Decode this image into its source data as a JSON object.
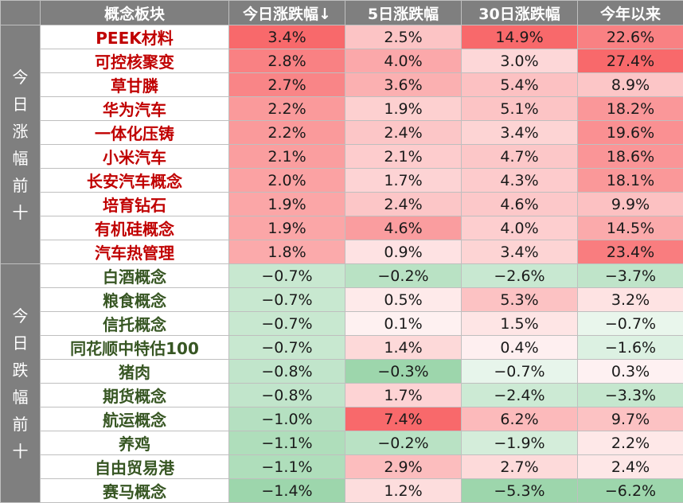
{
  "header": {
    "group_col": "",
    "name_col": "概念板块",
    "today_col": "今日涨跌幅↓",
    "d5_col": "5日涨跌幅",
    "d30_col": "30日涨跌幅",
    "ytd_col": "今年以来"
  },
  "colors": {
    "header_bg": "#7f7f7f",
    "up_text": "#c00000",
    "down_text": "#375623",
    "positive_max": "#f8696b",
    "negative_max": "#63be7b"
  },
  "groups": [
    {
      "label": "今日涨幅前十",
      "direction": "up",
      "rows": [
        {
          "name": "PEEK材料",
          "today": "3.4%",
          "d5": "2.5%",
          "d30": "14.9%",
          "ytd": "22.6%"
        },
        {
          "name": "可控核聚变",
          "today": "2.8%",
          "d5": "4.0%",
          "d30": "3.0%",
          "ytd": "27.4%"
        },
        {
          "name": "草甘膦",
          "today": "2.7%",
          "d5": "3.6%",
          "d30": "5.4%",
          "ytd": "8.9%"
        },
        {
          "name": "华为汽车",
          "today": "2.2%",
          "d5": "1.9%",
          "d30": "5.1%",
          "ytd": "18.2%"
        },
        {
          "name": "一体化压铸",
          "today": "2.2%",
          "d5": "2.4%",
          "d30": "3.4%",
          "ytd": "19.6%"
        },
        {
          "name": "小米汽车",
          "today": "2.1%",
          "d5": "2.1%",
          "d30": "4.7%",
          "ytd": "18.6%"
        },
        {
          "name": "长安汽车概念",
          "today": "2.0%",
          "d5": "1.7%",
          "d30": "4.3%",
          "ytd": "18.1%"
        },
        {
          "name": "培育钻石",
          "today": "1.9%",
          "d5": "2.4%",
          "d30": "4.6%",
          "ytd": "9.9%"
        },
        {
          "name": "有机硅概念",
          "today": "1.9%",
          "d5": "4.6%",
          "d30": "4.0%",
          "ytd": "14.5%"
        },
        {
          "name": "汽车热管理",
          "today": "1.8%",
          "d5": "0.9%",
          "d30": "3.4%",
          "ytd": "23.4%"
        }
      ]
    },
    {
      "label": "今日跌幅前十",
      "direction": "down",
      "rows": [
        {
          "name": "白酒概念",
          "today": "−0.7%",
          "d5": "−0.2%",
          "d30": "−2.6%",
          "ytd": "−3.7%"
        },
        {
          "name": "粮食概念",
          "today": "−0.7%",
          "d5": "0.5%",
          "d30": "5.3%",
          "ytd": "3.2%"
        },
        {
          "name": "信托概念",
          "today": "−0.7%",
          "d5": "0.1%",
          "d30": "1.5%",
          "ytd": "−0.7%"
        },
        {
          "name": "同花顺中特估100",
          "today": "−0.7%",
          "d5": "1.4%",
          "d30": "0.4%",
          "ytd": "−1.6%"
        },
        {
          "name": "猪肉",
          "today": "−0.8%",
          "d5": "−0.3%",
          "d30": "−0.7%",
          "ytd": "0.3%"
        },
        {
          "name": "期货概念",
          "today": "−0.8%",
          "d5": "1.7%",
          "d30": "−2.4%",
          "ytd": "−3.3%"
        },
        {
          "name": "航运概念",
          "today": "−1.0%",
          "d5": "7.4%",
          "d30": "6.2%",
          "ytd": "9.7%"
        },
        {
          "name": "养鸡",
          "today": "−1.1%",
          "d5": "−0.2%",
          "d30": "−1.9%",
          "ytd": "2.2%"
        },
        {
          "name": "自由贸易港",
          "today": "−1.1%",
          "d5": "2.9%",
          "d30": "2.7%",
          "ytd": "2.4%"
        },
        {
          "name": "赛马概念",
          "today": "−1.4%",
          "d5": "1.2%",
          "d30": "−5.3%",
          "ytd": "−6.2%"
        }
      ]
    }
  ]
}
